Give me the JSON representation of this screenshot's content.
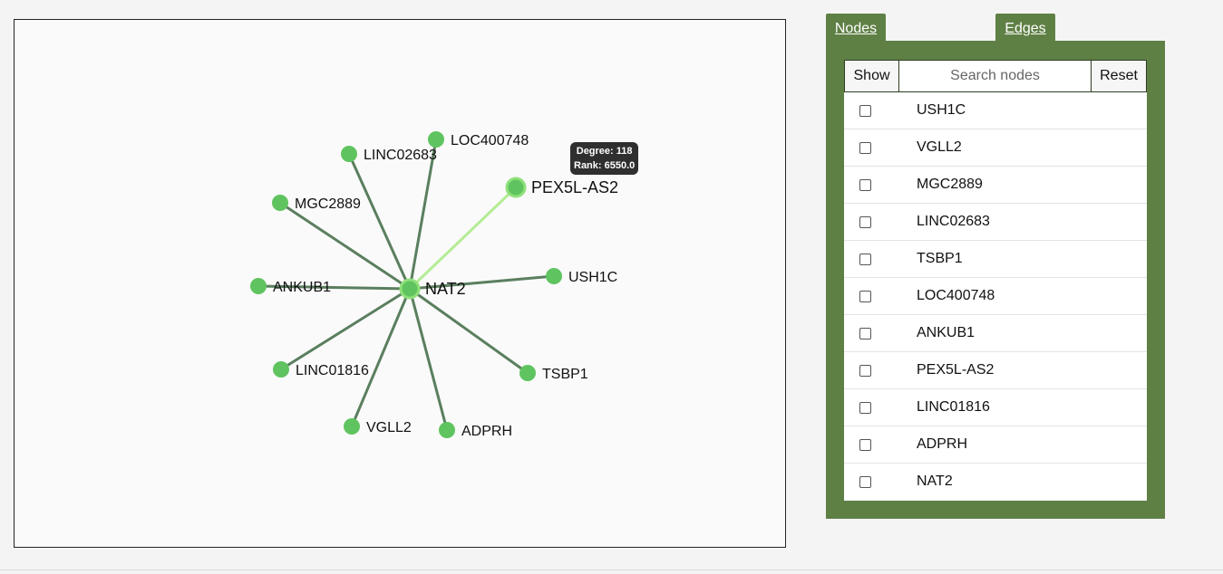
{
  "graph": {
    "center": "NAT2",
    "nodes": [
      {
        "id": "NAT2",
        "label": "NAT2",
        "center": true
      },
      {
        "id": "LOC400748",
        "label": "LOC400748"
      },
      {
        "id": "LINC02683",
        "label": "LINC02683"
      },
      {
        "id": "PEX5L-AS2",
        "label": "PEX5L-AS2",
        "highlighted": true
      },
      {
        "id": "MGC2889",
        "label": "MGC2889"
      },
      {
        "id": "USH1C",
        "label": "USH1C"
      },
      {
        "id": "ANKUB1",
        "label": "ANKUB1"
      },
      {
        "id": "LINC01816",
        "label": "LINC01816"
      },
      {
        "id": "TSBP1",
        "label": "TSBP1"
      },
      {
        "id": "VGLL2",
        "label": "VGLL2"
      },
      {
        "id": "ADPRH",
        "label": "ADPRH"
      }
    ],
    "colors": {
      "node": "#5fc45f",
      "edge": "#5a7f5e",
      "highlight_edge": "#b4ec94",
      "highlight_node": "#8fe07a"
    }
  },
  "tooltip": {
    "degree": "Degree: 118",
    "rank": "Rank: 6550.0"
  },
  "tabs": {
    "nodes": "Nodes",
    "edges": "Edges"
  },
  "toolbar": {
    "show_label": "Show",
    "search_placeholder": "Search nodes",
    "reset_label": "Reset"
  },
  "node_list": [
    "USH1C",
    "VGLL2",
    "MGC2889",
    "LINC02683",
    "TSBP1",
    "LOC400748",
    "ANKUB1",
    "PEX5L-AS2",
    "LINC01816",
    "ADPRH",
    "NAT2"
  ],
  "theme": {
    "accent": "#5f8045"
  }
}
